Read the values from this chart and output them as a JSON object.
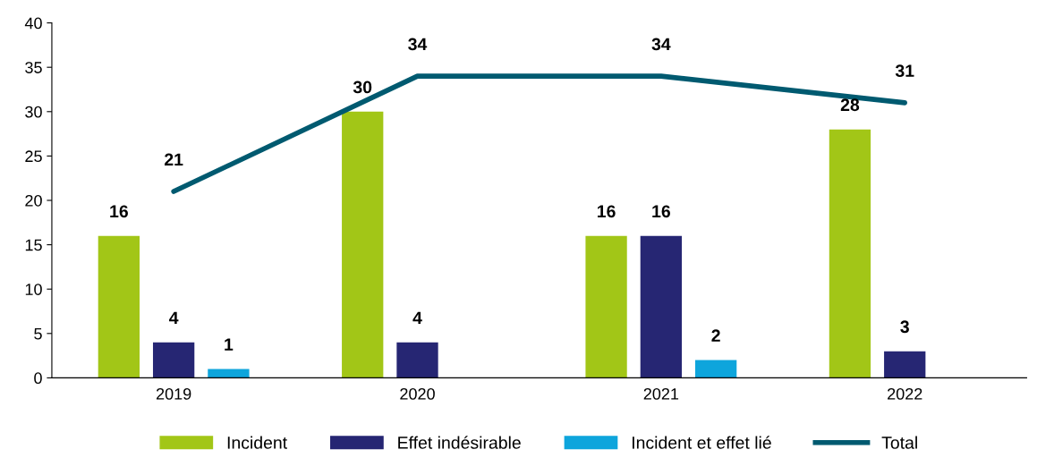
{
  "chart_data": {
    "type": "bar",
    "categories": [
      "2019",
      "2020",
      "2021",
      "2022"
    ],
    "series": [
      {
        "name": "Incident",
        "color": "#a2c617",
        "values": [
          16,
          30,
          16,
          28
        ]
      },
      {
        "name": "Effet indésirable",
        "color": "#262673",
        "values": [
          4,
          4,
          16,
          3
        ]
      },
      {
        "name": "Incident et effet lié",
        "color": "#0ea5dc",
        "values": [
          1,
          null,
          2,
          null
        ]
      },
      {
        "name": "Total",
        "type": "line",
        "color": "#005a70",
        "values": [
          21,
          34,
          34,
          31
        ]
      }
    ],
    "ylim": [
      0,
      40
    ],
    "yticks": [
      0,
      5,
      10,
      15,
      20,
      25,
      30,
      35,
      40
    ],
    "grid": false,
    "legend": "bottom",
    "data_labels": true,
    "marker": "none",
    "line_style": "solid"
  }
}
